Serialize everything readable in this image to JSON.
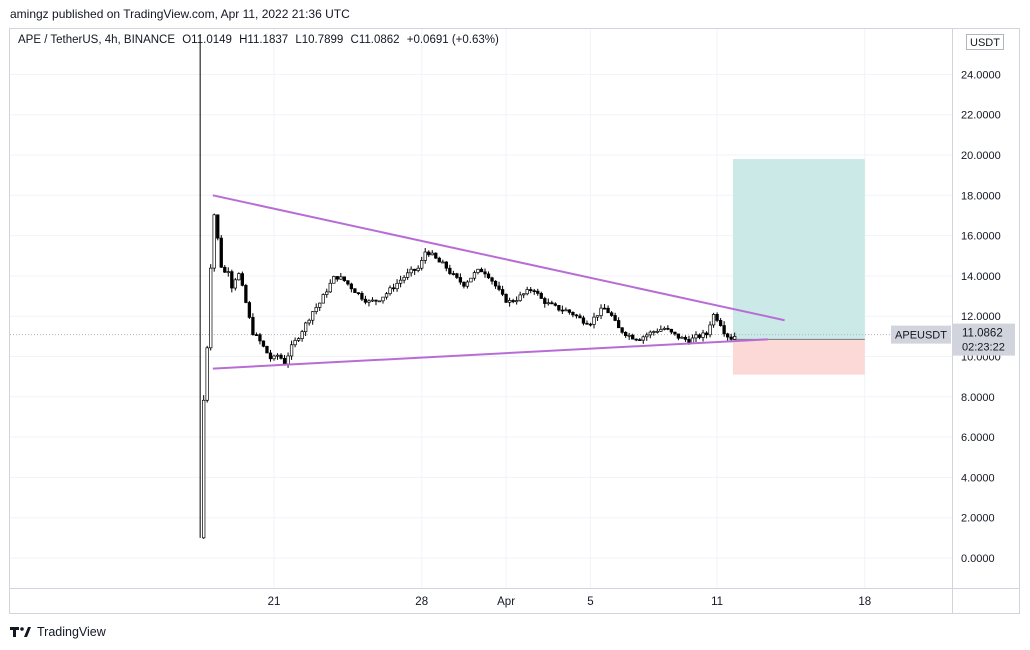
{
  "caption": "amingz published on TradingView.com, Apr 11, 2022 21:36 UTC",
  "legend": {
    "symbol": "APE / TetherUS, 4h, BINANCE",
    "open": "O11.0149",
    "high": "H11.1837",
    "low": "L10.7899",
    "close": "C11.0862",
    "change": "+0.0691 (+0.63%)"
  },
  "currency_badge": "USDT",
  "price_label": {
    "symbol": "APEUSDT",
    "price": "11.0862",
    "countdown": "02:23:22"
  },
  "footer_brand": "TradingView",
  "colors": {
    "trendline": "#b86dd6",
    "profit_zone": "#cbe9e6",
    "loss_zone": "#fcd9d6",
    "candle_up": "#ffffff",
    "candle_down": "#000000",
    "grid": "#f0f3fa"
  },
  "chart_data": {
    "type": "candlestick",
    "title": "APE / TetherUS, 4h, BINANCE",
    "ylabel": "USDT",
    "ylim": [
      -1.0,
      26.0
    ],
    "y_ticks": [
      "0.0000",
      "2.0000",
      "4.0000",
      "6.0000",
      "8.0000",
      "10.0000",
      "12.0000",
      "14.0000",
      "16.0000",
      "18.0000",
      "20.0000",
      "22.0000",
      "24.0000"
    ],
    "x_ticks": [
      "21",
      "28",
      "Apr",
      "5",
      "11",
      "18"
    ],
    "x_tick_days": [
      21,
      28,
      32,
      36,
      42,
      49
    ],
    "x_note": "day index: March dates as-is, April d = 31 + d",
    "price_path": [
      [
        17.5,
        1.0
      ],
      [
        17.6,
        7.5
      ],
      [
        17.7,
        8.0
      ],
      [
        17.8,
        9.5
      ],
      [
        17.9,
        12.5
      ],
      [
        18.05,
        15.5
      ],
      [
        18.2,
        17.5
      ],
      [
        18.4,
        15.0
      ],
      [
        18.6,
        14.0
      ],
      [
        18.8,
        14.5
      ],
      [
        19.0,
        13.5
      ],
      [
        19.3,
        14.2
      ],
      [
        19.6,
        13.0
      ],
      [
        19.8,
        12.0
      ],
      [
        20.0,
        11.2
      ],
      [
        20.3,
        10.8
      ],
      [
        20.6,
        10.3
      ],
      [
        20.9,
        9.8
      ],
      [
        21.2,
        10.1
      ],
      [
        21.5,
        9.7
      ],
      [
        21.8,
        10.4
      ],
      [
        22.1,
        10.9
      ],
      [
        22.5,
        11.6
      ],
      [
        22.8,
        12.2
      ],
      [
        23.2,
        12.7
      ],
      [
        23.5,
        13.3
      ],
      [
        23.9,
        14.0
      ],
      [
        24.3,
        13.8
      ],
      [
        24.7,
        13.4
      ],
      [
        25.1,
        13.0
      ],
      [
        25.5,
        12.7
      ],
      [
        25.9,
        12.8
      ],
      [
        26.3,
        13.1
      ],
      [
        26.7,
        13.5
      ],
      [
        27.1,
        13.9
      ],
      [
        27.5,
        14.2
      ],
      [
        27.9,
        14.4
      ],
      [
        28.2,
        15.3
      ],
      [
        28.5,
        15.0
      ],
      [
        28.8,
        14.7
      ],
      [
        29.1,
        14.5
      ],
      [
        29.4,
        14.1
      ],
      [
        29.7,
        13.8
      ],
      [
        30.0,
        13.6
      ],
      [
        30.3,
        13.9
      ],
      [
        30.6,
        14.2
      ],
      [
        30.9,
        14.3
      ],
      [
        31.2,
        14.0
      ],
      [
        31.5,
        13.5
      ],
      [
        31.8,
        13.0
      ],
      [
        32.1,
        12.7
      ],
      [
        32.4,
        12.8
      ],
      [
        32.7,
        13.0
      ],
      [
        33.0,
        13.2
      ],
      [
        33.3,
        13.4
      ],
      [
        33.6,
        12.9
      ],
      [
        34.0,
        12.6
      ],
      [
        34.4,
        12.4
      ],
      [
        34.8,
        12.3
      ],
      [
        35.2,
        12.1
      ],
      [
        35.6,
        11.8
      ],
      [
        36.0,
        11.7
      ],
      [
        36.4,
        12.2
      ],
      [
        36.7,
        12.4
      ],
      [
        37.0,
        12.0
      ],
      [
        37.3,
        11.4
      ],
      [
        37.6,
        11.2
      ],
      [
        37.9,
        11.0
      ],
      [
        38.3,
        10.9
      ],
      [
        38.7,
        11.1
      ],
      [
        39.1,
        11.3
      ],
      [
        39.5,
        11.4
      ],
      [
        39.9,
        11.1
      ],
      [
        40.3,
        10.9
      ],
      [
        40.7,
        10.8
      ],
      [
        41.1,
        11.0
      ],
      [
        41.5,
        11.1
      ],
      [
        41.8,
        12.1
      ],
      [
        42.1,
        11.8
      ],
      [
        42.4,
        11.1
      ],
      [
        42.7,
        10.9
      ],
      [
        42.9,
        11.09
      ]
    ],
    "trendlines": [
      {
        "name": "upper-trendline",
        "from": [
          18.1,
          18.0
        ],
        "to": [
          45.2,
          11.8
        ]
      },
      {
        "name": "lower-trendline",
        "from": [
          18.1,
          9.4
        ],
        "to": [
          44.4,
          10.85
        ]
      }
    ],
    "position": {
      "entry": 10.85,
      "target": 19.8,
      "stop": 9.1,
      "start_day": 42.75,
      "end_day": 49.0
    },
    "last_price": 11.0862
  }
}
